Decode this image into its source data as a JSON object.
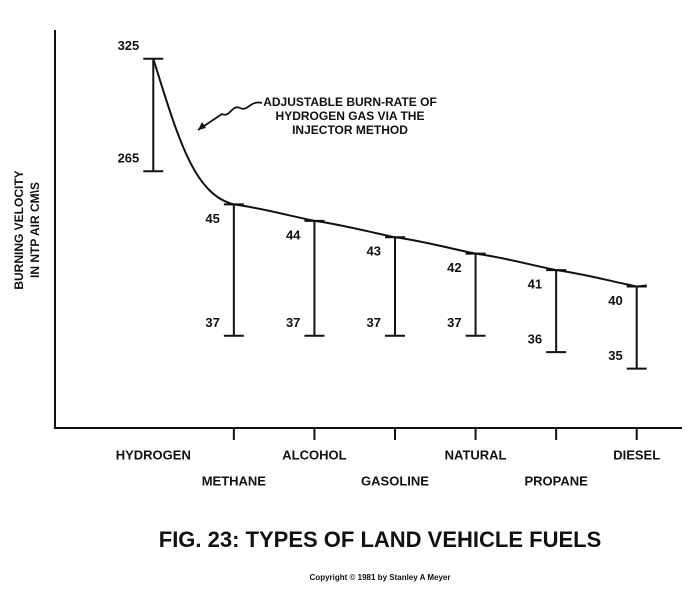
{
  "chart_data": {
    "type": "range",
    "title": "FIG. 23: TYPES OF LAND VEHICLE FUELS",
    "copyright": "Copyright © 1981 by Stanley A Meyer",
    "y_label": [
      "BURNING VELOCITY",
      "IN NTP AIR CM\\S"
    ],
    "annotation": [
      "ADJUSTABLE BURN-RATE OF",
      "HYDROGEN GAS VIA THE",
      "INJECTOR METHOD"
    ],
    "categories": [
      "HYDROGEN",
      "METHANE",
      "ALCOHOL",
      "GASOLINE",
      "NATURAL",
      "PROPANE",
      "DIESEL"
    ],
    "high": [
      325,
      45,
      44,
      43,
      42,
      41,
      40
    ],
    "low": [
      265,
      37,
      37,
      37,
      37,
      36,
      35
    ],
    "axis": [
      "y2",
      "y",
      "y",
      "y",
      "y",
      "y",
      "y"
    ],
    "ylim": [
      34,
      46
    ],
    "y2lim": [
      255,
      335
    ],
    "color": "#111111"
  }
}
